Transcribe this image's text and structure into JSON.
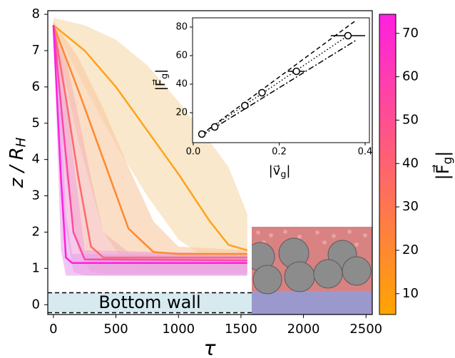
{
  "chart_data": [
    {
      "type": "line",
      "xlabel": "τ",
      "ylabel": [
        "z / R",
        "H"
      ],
      "xlim": [
        -45,
        2550
      ],
      "ylim": [
        -0.27,
        8.1
      ],
      "xticks": [
        0,
        500,
        1000,
        1500,
        2000,
        2500
      ],
      "yticks": [
        0,
        1,
        2,
        3,
        4,
        5,
        6,
        7,
        8
      ],
      "wall": {
        "label": "Bottom wall",
        "lower": -0.22,
        "upper": 0.33,
        "color": "#d6eaf0"
      },
      "series": [
        {
          "color": "#ffa21e",
          "x": [
            0,
            250,
            500,
            750,
            1000,
            1250,
            1400,
            1550
          ],
          "values": [
            7.7,
            7.0,
            6.0,
            4.8,
            3.6,
            2.3,
            1.65,
            1.5
          ],
          "spread_color": "#f5d9a8",
          "lower": [
            7.7,
            6.0,
            4.4,
            3.0,
            1.8,
            1.2,
            1.2,
            1.1
          ],
          "upper": [
            7.9,
            7.7,
            7.3,
            6.6,
            5.6,
            4.5,
            3.8,
            2.5
          ]
        },
        {
          "color": "#ff8830",
          "x": [
            0,
            200,
            400,
            600,
            800,
            1000,
            1550
          ],
          "values": [
            7.7,
            5.9,
            4.0,
            2.1,
            1.45,
            1.4,
            1.4
          ],
          "spread_color": "#f8c8a0",
          "lower": [
            7.7,
            4.5,
            2.0,
            1.0,
            0.9,
            0.9,
            0.9
          ],
          "upper": [
            7.8,
            6.8,
            5.4,
            3.8,
            2.3,
            1.6,
            1.5
          ]
        },
        {
          "color": "#ff6a68",
          "x": [
            0,
            100,
            200,
            300,
            400,
            600,
            1550
          ],
          "values": [
            7.7,
            5.7,
            3.5,
            1.6,
            1.3,
            1.3,
            1.3
          ],
          "spread_color": "#f4b6b0",
          "lower": [
            7.7,
            3.5,
            1.5,
            0.9,
            0.85,
            0.85,
            0.85
          ],
          "upper": [
            7.8,
            6.8,
            5.2,
            3.5,
            2.0,
            1.45,
            1.4
          ]
        },
        {
          "color": "#ff48a8",
          "x": [
            0,
            80,
            160,
            250,
            1550
          ],
          "values": [
            7.7,
            4.8,
            2.0,
            1.25,
            1.22
          ],
          "spread_color": "#f0a8d8",
          "lower": [
            7.7,
            2.5,
            0.9,
            0.8,
            0.8
          ],
          "upper": [
            7.8,
            6.5,
            4.0,
            1.5,
            1.4
          ]
        },
        {
          "color": "#ff20e0",
          "x": [
            0,
            60,
            100,
            150,
            1550
          ],
          "values": [
            7.7,
            3.5,
            1.3,
            1.15,
            1.15
          ],
          "spread_color": "#e8a0ec",
          "lower": [
            7.7,
            1.5,
            0.8,
            0.8,
            0.8
          ],
          "upper": [
            7.8,
            5.5,
            2.5,
            1.4,
            1.35
          ]
        }
      ]
    },
    {
      "type": "colorbar",
      "label": [
        "|F⃗",
        "g",
        "|"
      ],
      "ylim": [
        5.2,
        74.4
      ],
      "yticks": [
        10,
        20,
        30,
        40,
        50,
        60,
        70
      ],
      "colors": [
        "#ffa500",
        "#ff20e0"
      ]
    },
    {
      "type": "scatter",
      "xlabel": [
        "|v⃗",
        "g",
        "|"
      ],
      "ylabel": [
        "|F⃗",
        "g",
        "|"
      ],
      "xlim": [
        0,
        0.41
      ],
      "ylim": [
        -1,
        86.5
      ],
      "xticks": [
        {
          "value": 0,
          "label": "0.0"
        },
        0.2,
        0.4
      ],
      "yticks": [
        20,
        40,
        60,
        80
      ],
      "x": [
        0.02,
        0.05,
        0.12,
        0.16,
        0.24,
        0.36
      ],
      "values": [
        5,
        10,
        25,
        34,
        49,
        74
      ],
      "xerr": [
        0,
        0,
        0.005,
        0.008,
        0.02,
        0.04
      ],
      "lines": [
        {
          "dash": "6 4",
          "x": [
            0.02,
            0.38
          ],
          "values": [
            5,
            85
          ]
        },
        {
          "dash": "1.5 3",
          "x": [
            0.02,
            0.36
          ],
          "values": [
            5,
            74
          ]
        },
        {
          "dash": "8 3 2 3",
          "x": [
            0.02,
            0.38
          ],
          "values": [
            4,
            71
          ]
        }
      ]
    }
  ]
}
